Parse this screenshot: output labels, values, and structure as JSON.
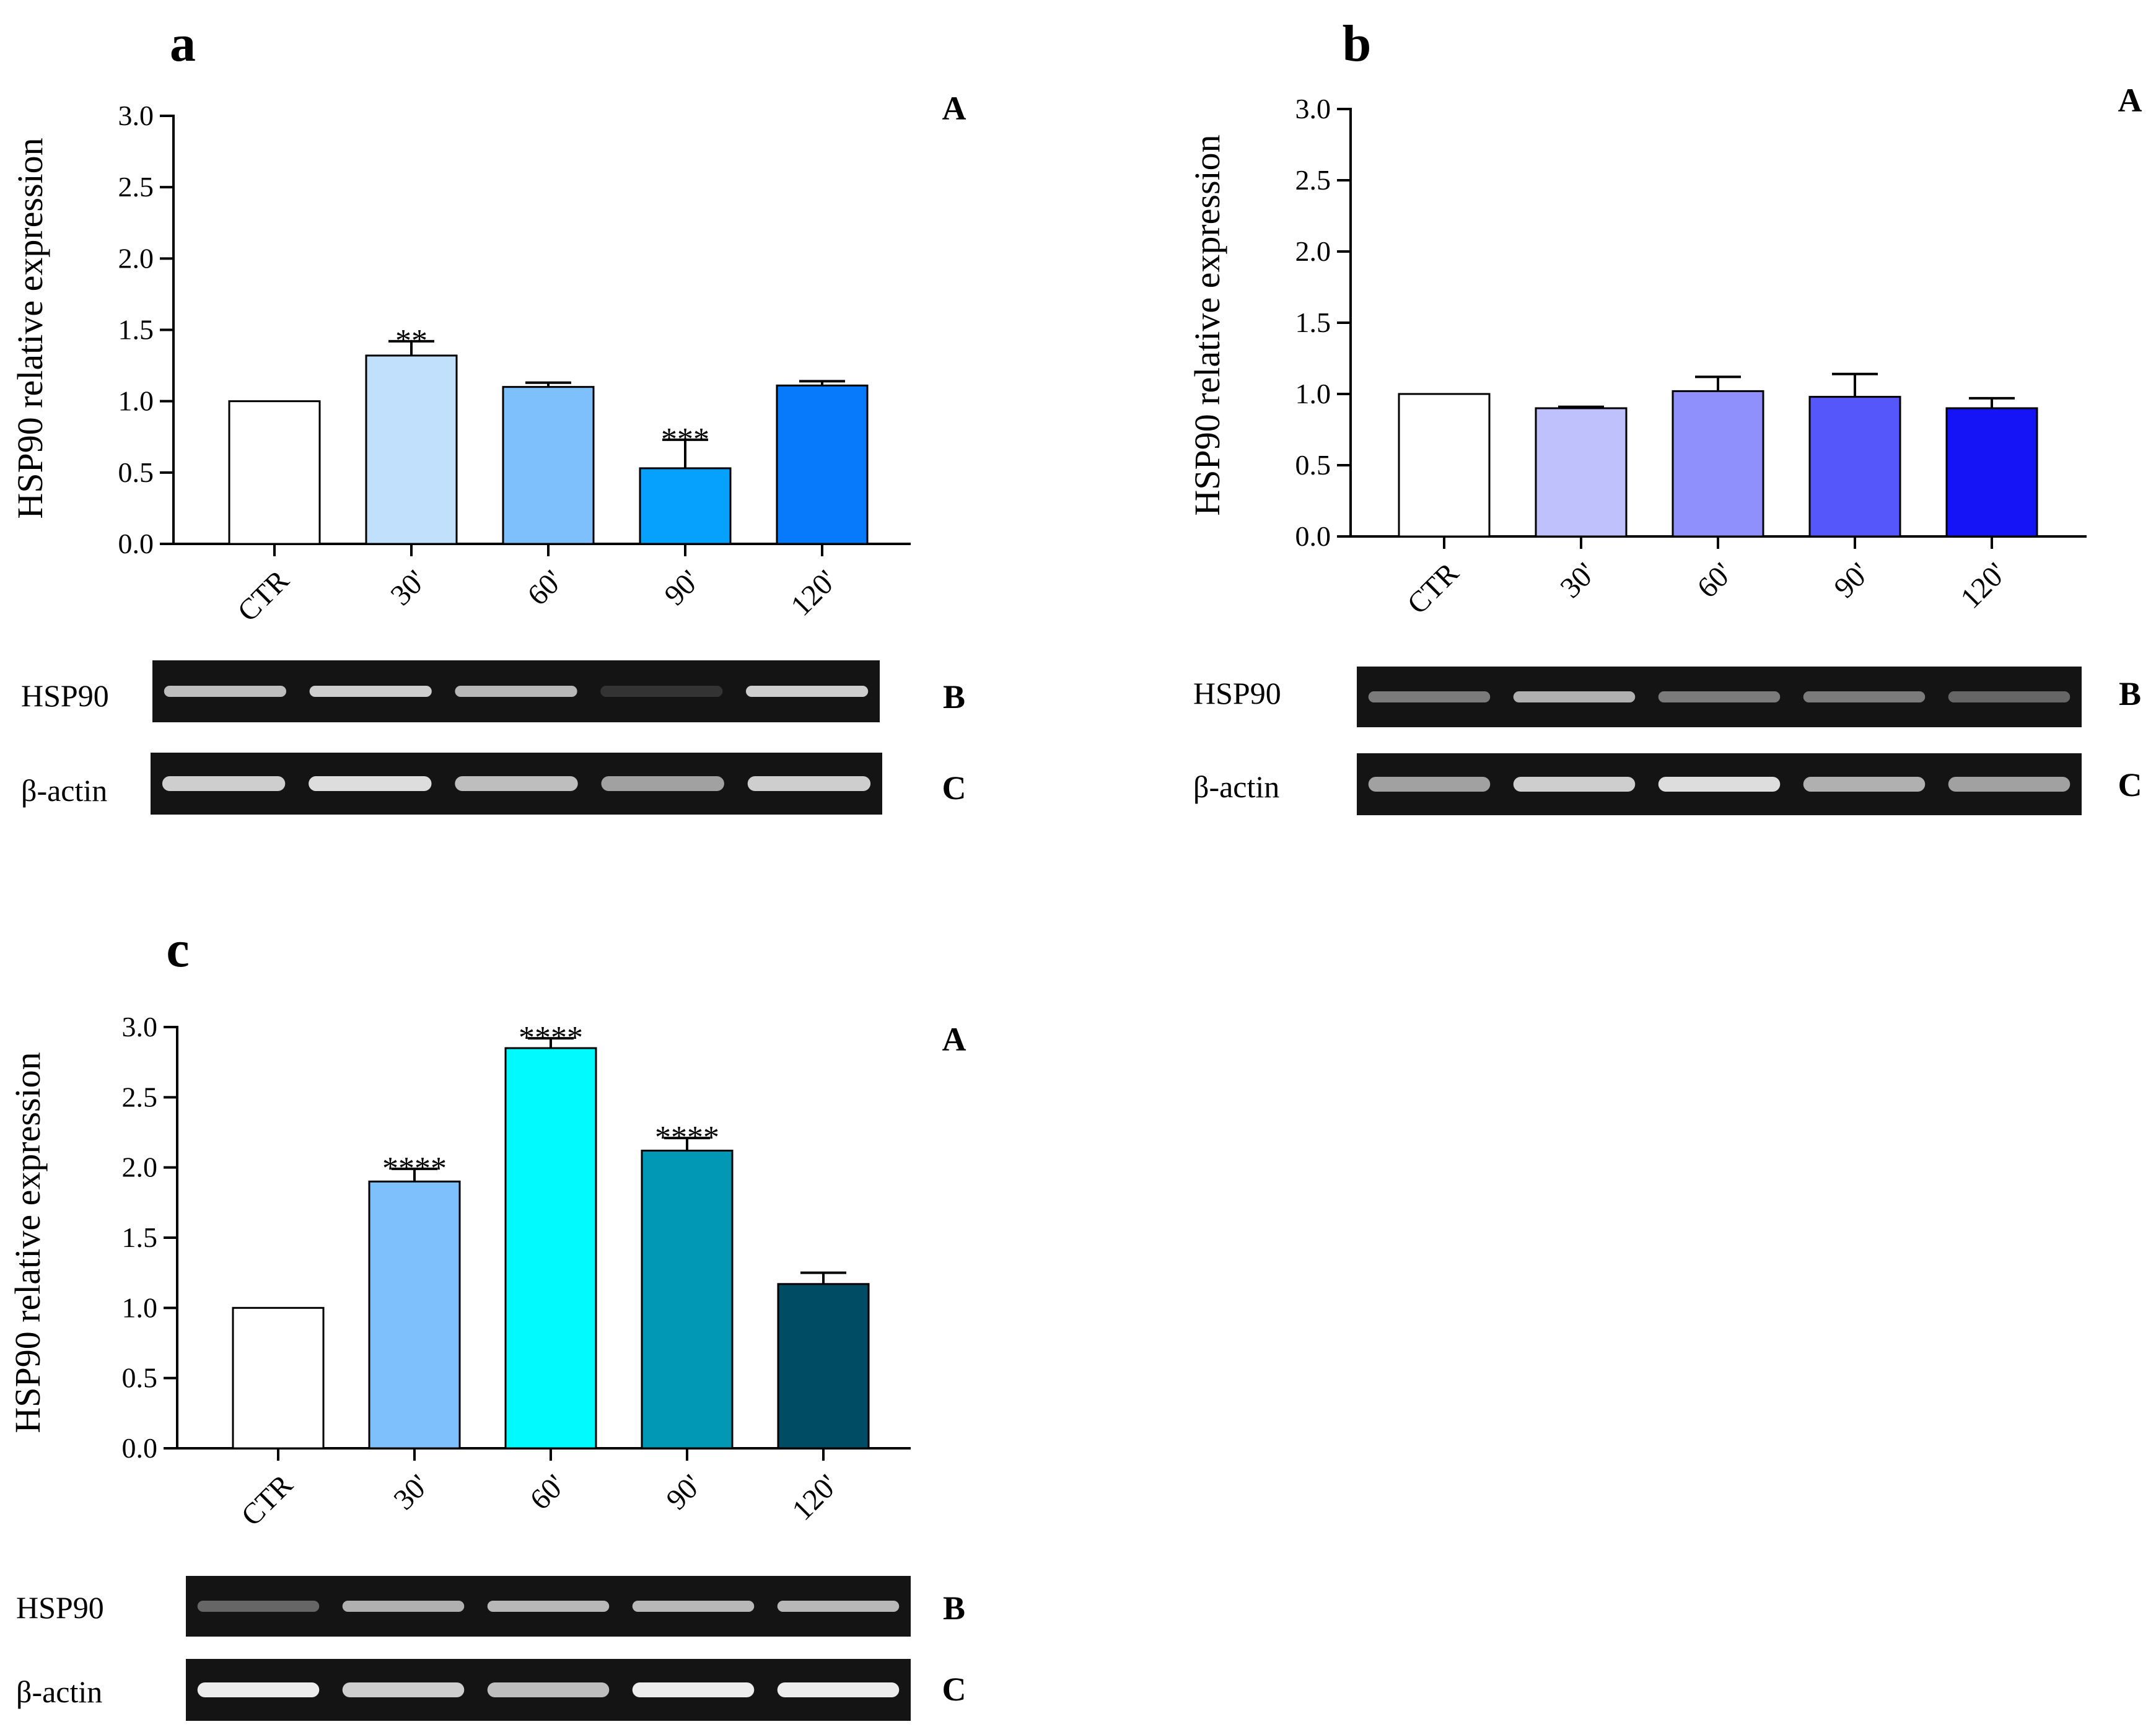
{
  "figure": {
    "panels": [
      {
        "panel_letter": "a",
        "chart_label": "A",
        "blot_labels": [
          "B",
          "C"
        ],
        "blot_rows": [
          "HSP90",
          "β-actin"
        ],
        "bar_colors": [
          "#ffffff",
          "#c1e0fb",
          "#7ec0fc",
          "#06a1fc",
          "#0779fb"
        ],
        "hsp90_band_intensity": [
          0.8,
          0.85,
          0.78,
          0.15,
          0.85
        ],
        "actin_band_intensity": [
          0.85,
          0.9,
          0.8,
          0.7,
          0.85
        ]
      },
      {
        "panel_letter": "b",
        "chart_label": "A",
        "blot_labels": [
          "B",
          "C"
        ],
        "blot_rows": [
          "HSP90",
          "β-actin"
        ],
        "bar_colors": [
          "#ffffff",
          "#bfc1fd",
          "#8f90fb",
          "#5557fb",
          "#1414f7"
        ],
        "hsp90_band_intensity": [
          0.55,
          0.75,
          0.55,
          0.55,
          0.45
        ],
        "actin_band_intensity": [
          0.7,
          0.85,
          0.9,
          0.75,
          0.7
        ]
      },
      {
        "panel_letter": "c",
        "chart_label": "A",
        "blot_labels": [
          "B",
          "C"
        ],
        "blot_rows": [
          "HSP90",
          "β-actin"
        ],
        "bar_colors": [
          "#ffffff",
          "#7ec0fc",
          "#00fafd",
          "#0098b5",
          "#004c64"
        ],
        "hsp90_band_intensity": [
          0.45,
          0.75,
          0.78,
          0.78,
          0.78
        ],
        "actin_band_intensity": [
          0.95,
          0.85,
          0.8,
          0.95,
          0.95
        ]
      }
    ]
  },
  "chart_data": [
    {
      "type": "bar",
      "title": "",
      "xlabel": "",
      "ylabel": "HSP90 relative expression",
      "categories": [
        "CTR",
        "30'",
        "60'",
        "90'",
        "120'"
      ],
      "values": [
        1.0,
        1.32,
        1.1,
        0.53,
        1.11
      ],
      "errors": [
        0,
        0.1,
        0.03,
        0.2,
        0.03
      ],
      "significance": [
        "",
        "**",
        "",
        "***",
        ""
      ],
      "ylim": [
        0,
        3.0
      ],
      "yticks": [
        "0.0",
        "0.5",
        "1.0",
        "1.5",
        "2.0",
        "2.5",
        "3.0"
      ],
      "grid": false
    },
    {
      "type": "bar",
      "title": "",
      "xlabel": "",
      "ylabel": "HSP90 relative expression",
      "categories": [
        "CTR",
        "30'",
        "60'",
        "90'",
        "120'"
      ],
      "values": [
        1.0,
        0.9,
        1.02,
        0.98,
        0.9
      ],
      "errors": [
        0,
        0.01,
        0.1,
        0.16,
        0.07
      ],
      "significance": [
        "",
        "",
        "",
        "",
        ""
      ],
      "ylim": [
        0,
        3.0
      ],
      "yticks": [
        "0.0",
        "0.5",
        "1.0",
        "1.5",
        "2.0",
        "2.5",
        "3.0"
      ],
      "grid": false
    },
    {
      "type": "bar",
      "title": "",
      "xlabel": "",
      "ylabel": "HSP90 relative expression",
      "categories": [
        "CTR",
        "30'",
        "60'",
        "90'",
        "120'"
      ],
      "values": [
        1.0,
        1.9,
        2.85,
        2.12,
        1.17
      ],
      "errors": [
        0,
        0.09,
        0.07,
        0.09,
        0.08
      ],
      "significance": [
        "",
        "****",
        "****",
        "****",
        ""
      ],
      "ylim": [
        0,
        3.0
      ],
      "yticks": [
        "0.0",
        "0.5",
        "1.0",
        "1.5",
        "2.0",
        "2.5",
        "3.0"
      ],
      "grid": false
    }
  ]
}
